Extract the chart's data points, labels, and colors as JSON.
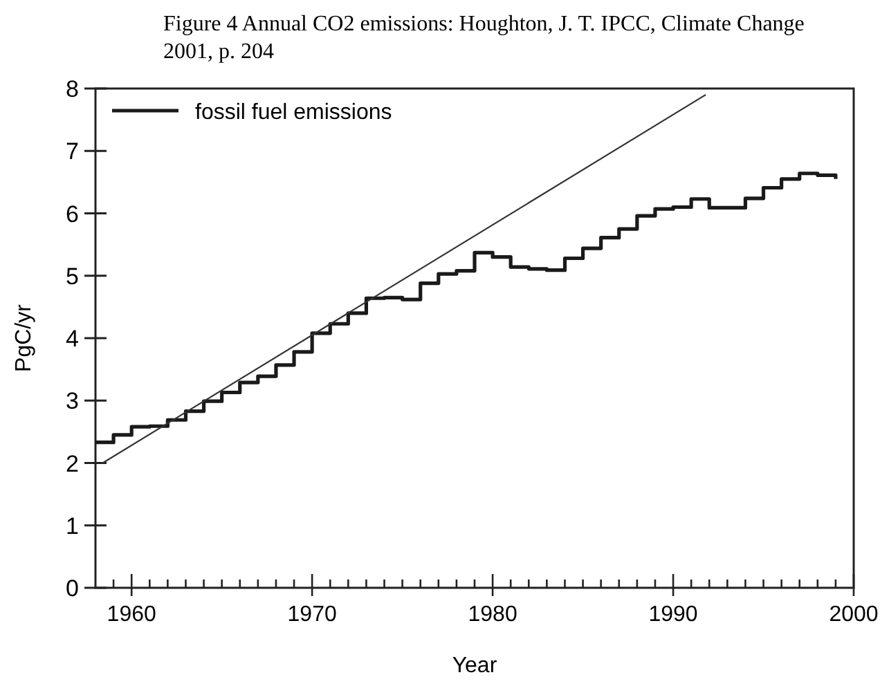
{
  "chart_data": {
    "type": "step",
    "title": "Figure 4 Annual CO2 emissions: Houghton, J. T. IPCC, Climate Change 2001, p. 204",
    "xlabel": "Year",
    "ylabel": "PgC/yr",
    "x": [
      1958,
      1959,
      1960,
      1961,
      1962,
      1963,
      1964,
      1965,
      1966,
      1967,
      1968,
      1969,
      1970,
      1971,
      1972,
      1973,
      1974,
      1975,
      1976,
      1977,
      1978,
      1979,
      1980,
      1981,
      1982,
      1983,
      1984,
      1985,
      1986,
      1987,
      1988,
      1989,
      1990,
      1991,
      1992,
      1993,
      1994,
      1995,
      1996,
      1997,
      1998,
      1999
    ],
    "series": [
      {
        "name": "fossil fuel emissions",
        "color": "#1a1a1a",
        "values": [
          2.33,
          2.45,
          2.58,
          2.59,
          2.69,
          2.83,
          2.99,
          3.13,
          3.29,
          3.39,
          3.57,
          3.78,
          4.08,
          4.23,
          4.4,
          4.64,
          4.65,
          4.62,
          4.88,
          5.03,
          5.08,
          5.37,
          5.3,
          5.14,
          5.11,
          5.09,
          5.28,
          5.44,
          5.61,
          5.75,
          5.96,
          6.07,
          6.1,
          6.23,
          6.09,
          6.09,
          6.24,
          6.41,
          6.55,
          6.64,
          6.61,
          6.55
        ]
      },
      {
        "type": "line",
        "color": "#333333",
        "x": [
          1958.4,
          1991.8
        ],
        "values": [
          2.0,
          7.9
        ]
      }
    ],
    "xlim": [
      1958,
      2000
    ],
    "ylim": [
      0,
      8
    ],
    "xticks": [
      1960,
      1970,
      1980,
      1990,
      2000,
      {
        "value": 1959,
        "label": null
      },
      {
        "value": 1961,
        "label": null
      },
      {
        "value": 1962,
        "label": null
      },
      {
        "value": 1963,
        "label": null
      },
      {
        "value": 1964,
        "label": null
      },
      {
        "value": 1965,
        "label": null
      },
      {
        "value": 1966,
        "label": null
      },
      {
        "value": 1967,
        "label": null
      },
      {
        "value": 1968,
        "label": null
      },
      {
        "value": 1969,
        "label": null
      },
      {
        "value": 1971,
        "label": null
      },
      {
        "value": 1972,
        "label": null
      },
      {
        "value": 1973,
        "label": null
      },
      {
        "value": 1974,
        "label": null
      },
      {
        "value": 1975,
        "label": null
      },
      {
        "value": 1976,
        "label": null
      },
      {
        "value": 1977,
        "label": null
      },
      {
        "value": 1978,
        "label": null
      },
      {
        "value": 1979,
        "label": null
      },
      {
        "value": 1981,
        "label": null
      },
      {
        "value": 1982,
        "label": null
      },
      {
        "value": 1983,
        "label": null
      },
      {
        "value": 1984,
        "label": null
      },
      {
        "value": 1985,
        "label": null
      },
      {
        "value": 1986,
        "label": null
      },
      {
        "value": 1987,
        "label": null
      },
      {
        "value": 1988,
        "label": null
      },
      {
        "value": 1989,
        "label": null
      },
      {
        "value": 1991,
        "label": null
      },
      {
        "value": 1992,
        "label": null
      },
      {
        "value": 1993,
        "label": null
      },
      {
        "value": 1994,
        "label": null
      },
      {
        "value": 1995,
        "label": null
      },
      {
        "value": 1996,
        "label": null
      },
      {
        "value": 1997,
        "label": null
      },
      {
        "value": 1998,
        "label": null
      },
      {
        "value": 1999,
        "label": null
      }
    ],
    "yticks": [
      0,
      1,
      2,
      3,
      4,
      5,
      6,
      7,
      8
    ],
    "legend": "top left",
    "grid": false
  }
}
